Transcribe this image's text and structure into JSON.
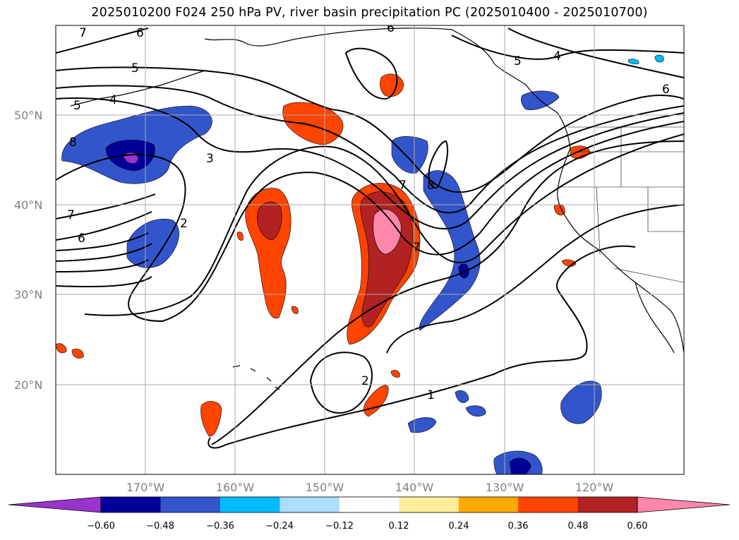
{
  "title": "2025010200 F024 250 hPa PV, river basin precipitation PC (2025010400 - 2025010700)",
  "map": {
    "projection": "PlateCarree",
    "lon_range": [
      -180,
      -110
    ],
    "lat_range": [
      10,
      60
    ],
    "lat_labels": [
      "50°N",
      "40°N",
      "30°N",
      "20°N"
    ],
    "lon_labels": [
      "170°W",
      "160°W",
      "150°W",
      "140°W",
      "130°W",
      "120°W"
    ],
    "pv_contour_labels": [
      "7",
      "6",
      "5",
      "5",
      "4",
      "8",
      "7",
      "6",
      "3",
      "2",
      "1",
      "2",
      "7",
      "8",
      "7",
      "5",
      "4",
      "6",
      "6"
    ]
  },
  "colorbar": {
    "tick_labels": [
      "−0.60",
      "−0.48",
      "−0.36",
      "−0.24",
      "−0.12",
      "0.12",
      "0.24",
      "0.36",
      "0.48",
      "0.60"
    ],
    "colors": [
      "#9933cc",
      "#000099",
      "#3355cc",
      "#00bbff",
      "#aaddff",
      "#ffffff",
      "#ffee99",
      "#ffaa00",
      "#ff4400",
      "#b22222",
      "#ff88aa"
    ]
  }
}
